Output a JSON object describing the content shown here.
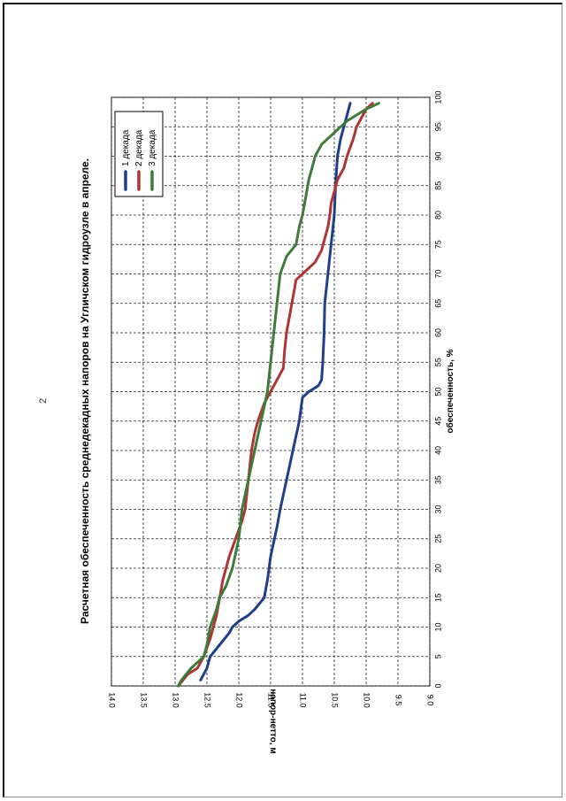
{
  "page": {
    "page_number": "2"
  },
  "chart_data": {
    "type": "line",
    "title": "Расчетная обеспеченность среднедекадных напоров на Угличском гидроузле в апреле.",
    "xlabel": "обеспеченность, %",
    "ylabel": "напор-нетто, м",
    "xlim": [
      0,
      100
    ],
    "ylim": [
      9.0,
      14.0
    ],
    "x_ticks": [
      "0",
      "5",
      "10",
      "15",
      "20",
      "25",
      "30",
      "35",
      "40",
      "45",
      "50",
      "55",
      "60",
      "65",
      "70",
      "75",
      "80",
      "85",
      "90",
      "95",
      "100"
    ],
    "y_ticks": [
      "9.0",
      "9.5",
      "10.0",
      "10.5",
      "11.0",
      "11.5",
      "12.0",
      "12.5",
      "13.0",
      "13.5",
      "14.0"
    ],
    "grid": true,
    "legend_position": "top-left",
    "series": [
      {
        "name": "1 декада",
        "color": "#1f3f8a",
        "points": [
          [
            1,
            12.6
          ],
          [
            3,
            12.5
          ],
          [
            5,
            12.45
          ],
          [
            7,
            12.3
          ],
          [
            9,
            12.15
          ],
          [
            10,
            12.1
          ],
          [
            11,
            12.0
          ],
          [
            12,
            11.85
          ],
          [
            13,
            11.75
          ],
          [
            15,
            11.6
          ],
          [
            18,
            11.55
          ],
          [
            22,
            11.5
          ],
          [
            27,
            11.4
          ],
          [
            30,
            11.35
          ],
          [
            35,
            11.25
          ],
          [
            40,
            11.15
          ],
          [
            45,
            11.05
          ],
          [
            49,
            11.0
          ],
          [
            50,
            10.9
          ],
          [
            51,
            10.75
          ],
          [
            52,
            10.7
          ],
          [
            55,
            10.68
          ],
          [
            60,
            10.66
          ],
          [
            65,
            10.65
          ],
          [
            70,
            10.6
          ],
          [
            75,
            10.55
          ],
          [
            80,
            10.5
          ],
          [
            85,
            10.48
          ],
          [
            90,
            10.45
          ],
          [
            93,
            10.4
          ],
          [
            95,
            10.35
          ],
          [
            97,
            10.3
          ],
          [
            99,
            10.25
          ]
        ]
      },
      {
        "name": "2 декада",
        "color": "#b03434",
        "points": [
          [
            0,
            12.95
          ],
          [
            2,
            12.8
          ],
          [
            3,
            12.65
          ],
          [
            5,
            12.55
          ],
          [
            8,
            12.45
          ],
          [
            12,
            12.35
          ],
          [
            15,
            12.3
          ],
          [
            18,
            12.25
          ],
          [
            22,
            12.15
          ],
          [
            25,
            12.05
          ],
          [
            28,
            11.95
          ],
          [
            30,
            11.9
          ],
          [
            35,
            11.85
          ],
          [
            40,
            11.8
          ],
          [
            43,
            11.75
          ],
          [
            45,
            11.7
          ],
          [
            48,
            11.6
          ],
          [
            50,
            11.5
          ],
          [
            52,
            11.4
          ],
          [
            54,
            11.3
          ],
          [
            57,
            11.28
          ],
          [
            60,
            11.25
          ],
          [
            63,
            11.2
          ],
          [
            66,
            11.15
          ],
          [
            69,
            11.1
          ],
          [
            70,
            11.0
          ],
          [
            72,
            10.8
          ],
          [
            74,
            10.7
          ],
          [
            76,
            10.65
          ],
          [
            78,
            10.6
          ],
          [
            80,
            10.57
          ],
          [
            82,
            10.55
          ],
          [
            84,
            10.5
          ],
          [
            86,
            10.45
          ],
          [
            88,
            10.35
          ],
          [
            90,
            10.3
          ],
          [
            93,
            10.2
          ],
          [
            95,
            10.15
          ],
          [
            96,
            10.1
          ],
          [
            98,
            10.0
          ],
          [
            99,
            9.9
          ]
        ]
      },
      {
        "name": "3 декада",
        "color": "#3e7b3a",
        "points": [
          [
            0,
            12.95
          ],
          [
            1,
            12.9
          ],
          [
            3,
            12.75
          ],
          [
            5,
            12.55
          ],
          [
            7,
            12.5
          ],
          [
            10,
            12.45
          ],
          [
            13,
            12.35
          ],
          [
            15,
            12.3
          ],
          [
            17,
            12.2
          ],
          [
            20,
            12.1
          ],
          [
            25,
            12.0
          ],
          [
            30,
            11.95
          ],
          [
            35,
            11.85
          ],
          [
            40,
            11.75
          ],
          [
            45,
            11.65
          ],
          [
            50,
            11.55
          ],
          [
            55,
            11.5
          ],
          [
            60,
            11.45
          ],
          [
            65,
            11.4
          ],
          [
            70,
            11.35
          ],
          [
            73,
            11.25
          ],
          [
            75,
            11.1
          ],
          [
            78,
            11.05
          ],
          [
            80,
            11.0
          ],
          [
            83,
            10.95
          ],
          [
            86,
            10.9
          ],
          [
            88,
            10.85
          ],
          [
            90,
            10.8
          ],
          [
            92,
            10.7
          ],
          [
            94,
            10.5
          ],
          [
            96,
            10.3
          ],
          [
            98,
            10.0
          ],
          [
            99,
            9.8
          ]
        ]
      }
    ]
  }
}
